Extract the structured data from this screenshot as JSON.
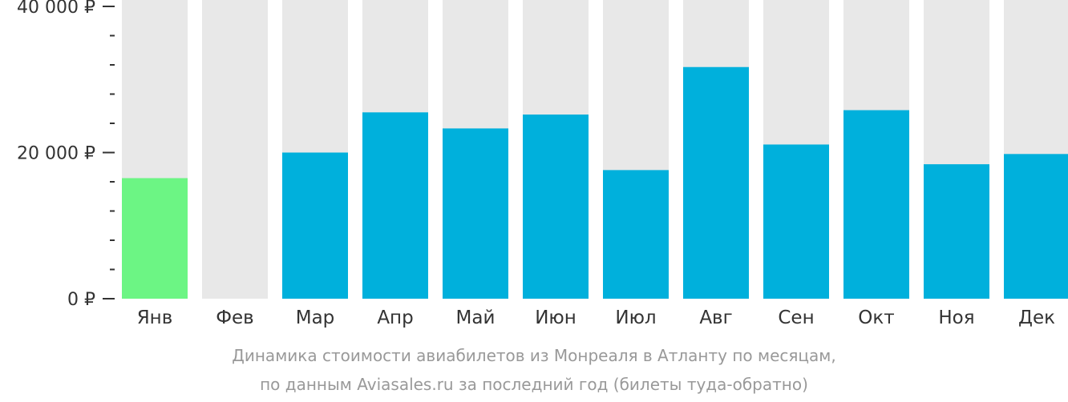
{
  "chart_data": {
    "type": "bar",
    "categories": [
      "Янв",
      "Фев",
      "Мар",
      "Апр",
      "Май",
      "Июн",
      "Июл",
      "Авг",
      "Сен",
      "Окт",
      "Ноя",
      "Дек"
    ],
    "values": [
      16500,
      null,
      20000,
      25500,
      23300,
      25200,
      17600,
      31700,
      21100,
      25800,
      18400,
      19800
    ],
    "highlight_index": 0,
    "ylim": [
      0,
      40000
    ],
    "y_ticks": [
      {
        "value": 0,
        "label": "0 ₽"
      },
      {
        "value": 20000,
        "label": "20 000 ₽"
      },
      {
        "value": 40000,
        "label": "40 000 ₽"
      }
    ],
    "y_minor_tick_step": 4000,
    "caption_line1": "Динамика стоимости авиабилетов из Монреаля в Атланту по месяцам,",
    "caption_line2": "по данным Aviasales.ru за последний год (билеты туда-обратно)",
    "colors": {
      "bar": "#00b0dc",
      "highlight": "#6cf584",
      "track": "#e8e8e8",
      "axis_text": "#333333",
      "caption_text": "#999999"
    }
  }
}
